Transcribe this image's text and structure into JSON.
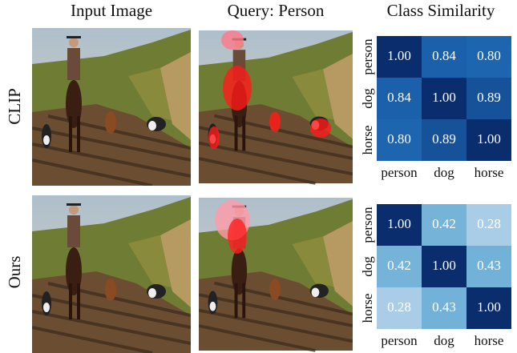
{
  "columns": [
    "Input Image",
    "Query: Person",
    "Class Similarity"
  ],
  "rows": [
    "CLIP",
    "Ours"
  ],
  "matrices": [
    {
      "classes": [
        "person",
        "dog",
        "horse"
      ],
      "values": [
        [
          1.0,
          0.84,
          0.8
        ],
        [
          0.84,
          1.0,
          0.89
        ],
        [
          0.8,
          0.89,
          1.0
        ]
      ],
      "value_labels": [
        [
          "1.00",
          "0.84",
          "0.80"
        ],
        [
          "0.84",
          "1.00",
          "0.89"
        ],
        [
          "0.80",
          "0.89",
          "1.00"
        ]
      ]
    },
    {
      "classes": [
        "person",
        "dog",
        "horse"
      ],
      "values": [
        [
          1.0,
          0.42,
          0.28
        ],
        [
          0.42,
          1.0,
          0.43
        ],
        [
          0.28,
          0.43,
          1.0
        ]
      ],
      "value_labels": [
        [
          "1.00",
          "0.42",
          "0.28"
        ],
        [
          "0.42",
          "1.00",
          "0.43"
        ],
        [
          "0.28",
          "0.43",
          "1.00"
        ]
      ]
    }
  ]
}
